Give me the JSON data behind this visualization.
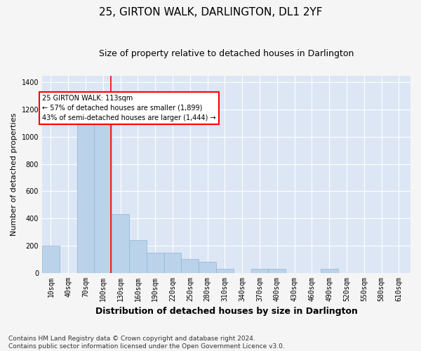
{
  "title": "25, GIRTON WALK, DARLINGTON, DL1 2YF",
  "subtitle": "Size of property relative to detached houses in Darlington",
  "xlabel": "Distribution of detached houses by size in Darlington",
  "ylabel": "Number of detached properties",
  "bar_color": "#bad3ea",
  "bar_edge_color": "#90b4d4",
  "background_color": "#dce6f5",
  "grid_color": "#ffffff",
  "fig_facecolor": "#f5f5f5",
  "annotation_text": "25 GIRTON WALK: 113sqm\n← 57% of detached houses are smaller (1,899)\n43% of semi-detached houses are larger (1,444) →",
  "red_line_x": 113,
  "categories": [
    10,
    40,
    70,
    100,
    130,
    160,
    190,
    220,
    250,
    280,
    310,
    340,
    370,
    400,
    430,
    460,
    490,
    520,
    550,
    580,
    610
  ],
  "values": [
    200,
    0,
    1130,
    1095,
    430,
    240,
    150,
    145,
    100,
    80,
    30,
    0,
    30,
    28,
    0,
    0,
    30,
    0,
    0,
    0,
    0
  ],
  "bin_width": 30,
  "ylim": [
    0,
    1450
  ],
  "yticks": [
    0,
    200,
    400,
    600,
    800,
    1000,
    1200,
    1400
  ],
  "footer": "Contains HM Land Registry data © Crown copyright and database right 2024.\nContains public sector information licensed under the Open Government Licence v3.0.",
  "title_fontsize": 11,
  "subtitle_fontsize": 9,
  "xlabel_fontsize": 9,
  "ylabel_fontsize": 8,
  "tick_fontsize": 7,
  "footer_fontsize": 6.5
}
